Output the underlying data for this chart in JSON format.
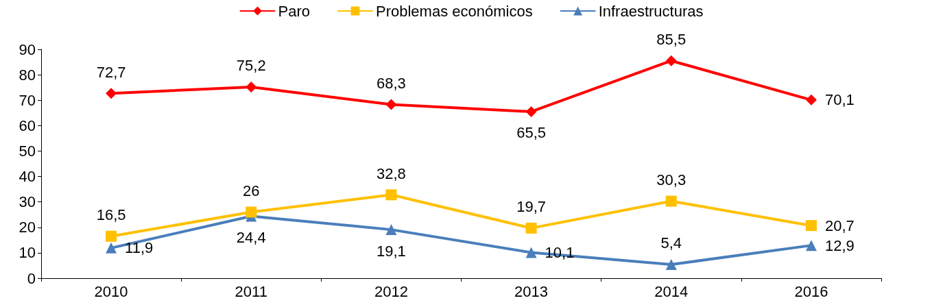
{
  "chart_data": {
    "type": "line",
    "categories": [
      "2010",
      "2011",
      "2012",
      "2013",
      "2014",
      "2016"
    ],
    "series": [
      {
        "name": "Paro",
        "color": "#ff0000",
        "marker": "diamond",
        "values": [
          72.7,
          75.2,
          68.3,
          65.5,
          85.5,
          70.1
        ],
        "value_labels": [
          "72,7",
          "75,2",
          "68,3",
          "65,5",
          "85,5",
          "70,1"
        ]
      },
      {
        "name": "Problemas económicos",
        "color": "#ffc000",
        "marker": "square",
        "values": [
          16.5,
          26,
          32.8,
          19.7,
          30.3,
          20.7
        ],
        "value_labels": [
          "16,5",
          "26",
          "32,8",
          "19,7",
          "30,3",
          "20,7"
        ]
      },
      {
        "name": "Infraestructuras",
        "color": "#4a7ebb",
        "marker": "triangle",
        "values": [
          11.9,
          24.4,
          19.1,
          10.1,
          5.4,
          12.9
        ],
        "value_labels": [
          "11,9",
          "24,4",
          "19,1",
          "10,1",
          "5,4",
          "12,9"
        ]
      }
    ],
    "ylim": [
      0,
      90
    ],
    "yticks": [
      0,
      10,
      20,
      30,
      40,
      50,
      60,
      70,
      80,
      90
    ],
    "grid": false,
    "legend": "top",
    "line_style": "solid"
  }
}
